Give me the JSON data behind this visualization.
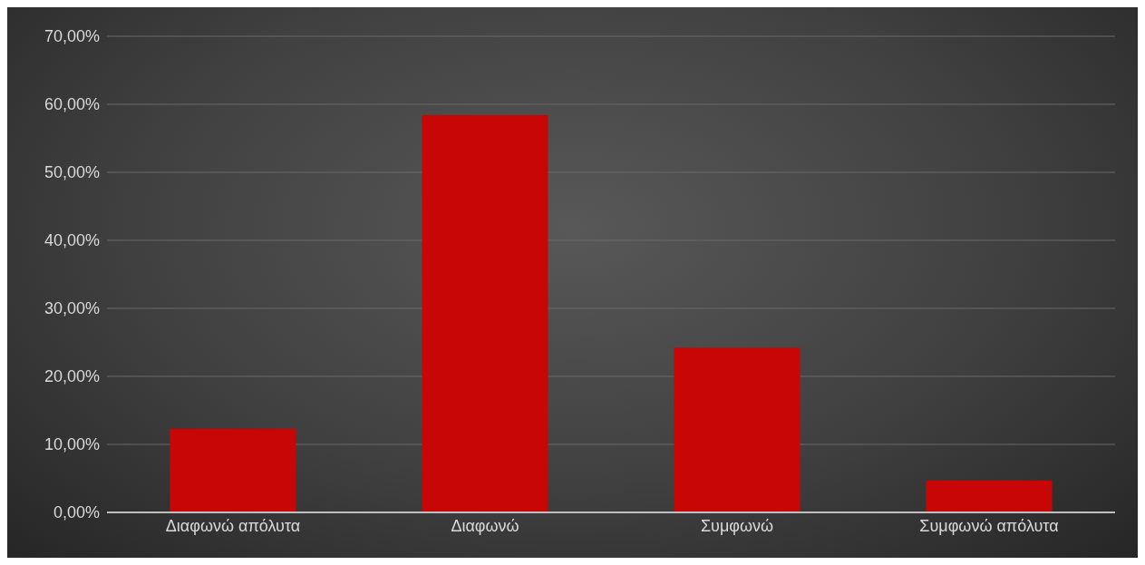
{
  "chart_data": {
    "type": "bar",
    "categories": [
      "Διαφωνώ απόλυτα",
      "Διαφωνώ",
      "Συμφωνώ",
      "Συμφωνώ απόλυτα"
    ],
    "values": [
      12.3,
      58.4,
      24.2,
      4.7
    ],
    "color": "#c80606",
    "ylim": [
      0,
      70
    ],
    "yticks": [
      {
        "value": 0,
        "label": "0,00%"
      },
      {
        "value": 10,
        "label": "10,00%"
      },
      {
        "value": 20,
        "label": "20,00%"
      },
      {
        "value": 30,
        "label": "30,00%"
      },
      {
        "value": 40,
        "label": "40,00%"
      },
      {
        "value": 50,
        "label": "50,00%"
      },
      {
        "value": 60,
        "label": "60,00%"
      },
      {
        "value": 70,
        "label": "70,00%"
      }
    ],
    "grid": "y",
    "legend": false
  }
}
